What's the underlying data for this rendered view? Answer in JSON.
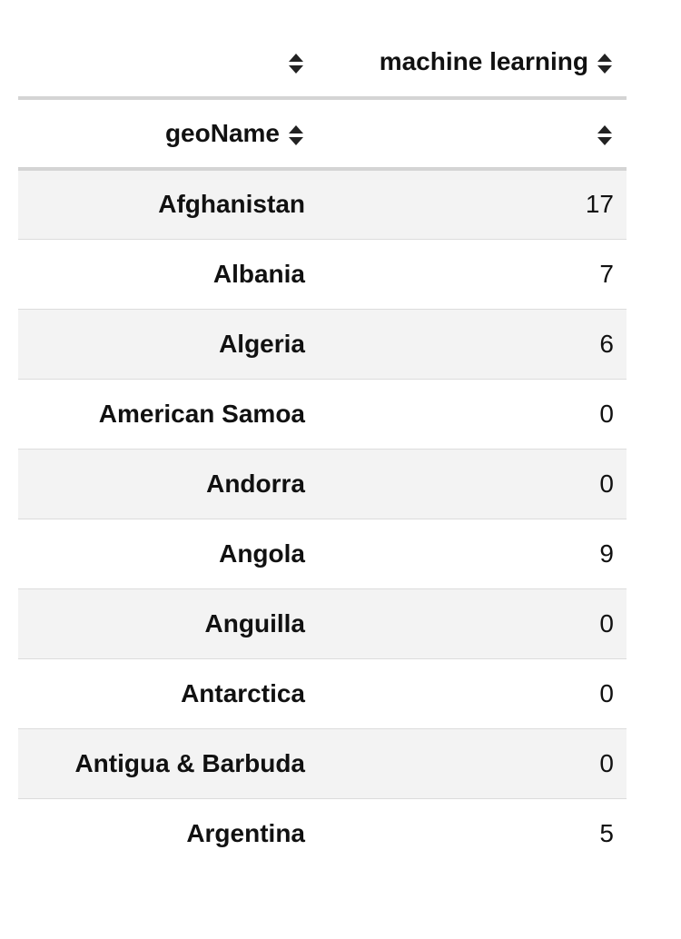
{
  "table": {
    "columns": [
      "machine learning"
    ],
    "index_name": "geoName",
    "rows": [
      [
        "Afghanistan",
        17
      ],
      [
        "Albania",
        7
      ],
      [
        "Algeria",
        6
      ],
      [
        "American Samoa",
        0
      ],
      [
        "Andorra",
        0
      ],
      [
        "Angola",
        9
      ],
      [
        "Anguilla",
        0
      ],
      [
        "Antarctica",
        0
      ],
      [
        "Antigua & Barbuda",
        0
      ],
      [
        "Argentina",
        5
      ]
    ]
  }
}
